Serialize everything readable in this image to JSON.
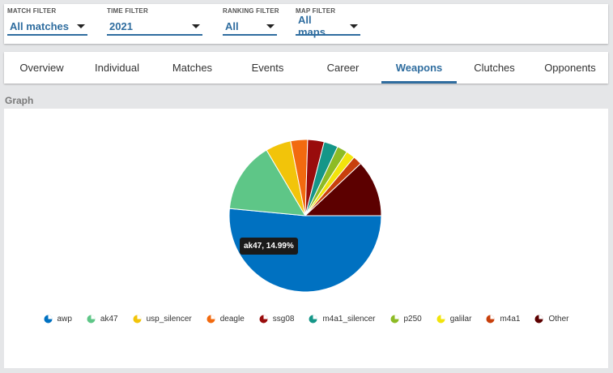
{
  "filters": [
    {
      "label": "MATCH FILTER",
      "value": "All matches"
    },
    {
      "label": "TIME FILTER",
      "value": "2021"
    },
    {
      "label": "RANKING FILTER",
      "value": "All"
    },
    {
      "label": "MAP FILTER",
      "value": "All maps"
    }
  ],
  "tabs": [
    {
      "label": "Overview",
      "active": false
    },
    {
      "label": "Individual",
      "active": false
    },
    {
      "label": "Matches",
      "active": false
    },
    {
      "label": "Events",
      "active": false
    },
    {
      "label": "Career",
      "active": false
    },
    {
      "label": "Weapons",
      "active": true
    },
    {
      "label": "Clutches",
      "active": false
    },
    {
      "label": "Opponents",
      "active": false
    }
  ],
  "section_title": "Graph",
  "tooltip": {
    "text": "ak47, 14.99%"
  },
  "chart_data": {
    "type": "pie",
    "title": "",
    "slices": [
      {
        "name": "awp",
        "value": 51.5,
        "color": "#0071c1"
      },
      {
        "name": "ak47",
        "value": 14.99,
        "color": "#5ec687"
      },
      {
        "name": "usp_silencer",
        "value": 5.4,
        "color": "#f2c40a"
      },
      {
        "name": "deagle",
        "value": 3.6,
        "color": "#f26a0f"
      },
      {
        "name": "ssg08",
        "value": 3.5,
        "color": "#990c0c"
      },
      {
        "name": "m4a1_silencer",
        "value": 3.0,
        "color": "#159688"
      },
      {
        "name": "p250",
        "value": 2.2,
        "color": "#8dbb25"
      },
      {
        "name": "galilar",
        "value": 1.9,
        "color": "#f2e40c"
      },
      {
        "name": "m4a1",
        "value": 1.9,
        "color": "#c8400c"
      },
      {
        "name": "Other",
        "value": 12.0,
        "color": "#5c0000"
      }
    ],
    "legend_position": "bottom"
  }
}
